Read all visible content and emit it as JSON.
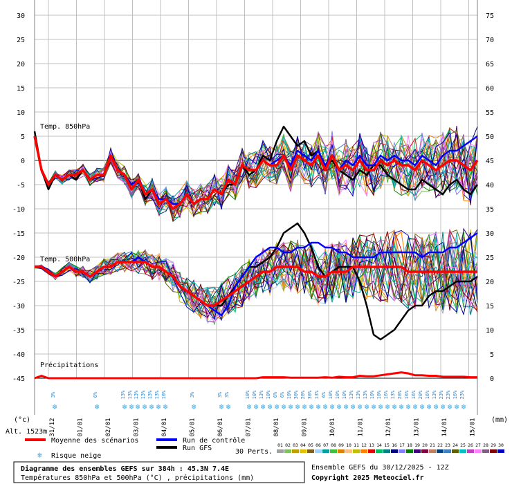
{
  "chart_data": {
    "type": "line",
    "left_ticks": [
      "30",
      "25",
      "20",
      "15",
      "10",
      "5",
      "0",
      "-5",
      "-10",
      "-15",
      "-20",
      "-25",
      "-30",
      "-35",
      "-40",
      "-45"
    ],
    "right_ticks": [
      "75",
      "70",
      "65",
      "60",
      "55",
      "50",
      "45",
      "40",
      "35",
      "30",
      "25",
      "20",
      "15",
      "10",
      "5",
      "0"
    ],
    "left_unit": "(°c)",
    "right_unit": "(mm)",
    "altitude": "Alt. 1523m",
    "panel_labels": {
      "t850": "Temp. 850hPa",
      "t500": "Temp. 500hPa",
      "precip": "Précipitations"
    },
    "x_dates": [
      "31/12",
      "01/01",
      "02/01",
      "03/01",
      "04/01",
      "05/01",
      "06/01",
      "07/01",
      "08/01",
      "09/01",
      "10/01",
      "11/01",
      "12/01",
      "13/01",
      "14/01",
      "15/01"
    ],
    "snow_labels": [
      "3%",
      "6%",
      "13%",
      "13%",
      "13%",
      "13%",
      "13%",
      "13%",
      "10%",
      "3%",
      "3%",
      "3%",
      "10%",
      "10%",
      "13%",
      "10%",
      "6%",
      "6%",
      "10%",
      "30%",
      "20%",
      "30%",
      "13%",
      "6%",
      "10%",
      "10%",
      "10%",
      "13%",
      "13%",
      "13%",
      "10%",
      "10%",
      "16%",
      "13%",
      "20%",
      "16%",
      "16%",
      "20%",
      "16%",
      "13%",
      "23%",
      "23%",
      "16%",
      "23%"
    ],
    "t850_mean": [
      5,
      -2,
      -5,
      -3,
      -4,
      -3,
      -3,
      -2,
      -4,
      -3,
      -3,
      1,
      -2,
      -3,
      -6,
      -4,
      -7,
      -6,
      -9,
      -8,
      -10,
      -9,
      -7,
      -9,
      -8,
      -8,
      -6,
      -7,
      -4,
      -5,
      -1,
      -2,
      -2,
      0,
      -1,
      -1,
      1,
      -2,
      1,
      0,
      -1,
      1,
      -2,
      1,
      -2,
      -1,
      -2,
      0,
      -2,
      -2,
      0,
      -1,
      0,
      -1,
      -1,
      -2,
      0,
      -1,
      -2,
      -1,
      0,
      0,
      -1,
      -2,
      0
    ],
    "t850_ctrl": [
      5,
      -2,
      -5,
      -3,
      -4,
      -3,
      -3,
      -2,
      -4,
      -3,
      -3,
      1,
      -2,
      -3,
      -5,
      -4,
      -7,
      -6,
      -8,
      -8,
      -9,
      -9,
      -7,
      -9,
      -8,
      -8,
      -6,
      -7,
      -4,
      -5,
      -1,
      -2,
      -2,
      0,
      -1,
      0,
      1,
      -1,
      2,
      1,
      0,
      2,
      -1,
      1,
      -2,
      0,
      -1,
      1,
      -1,
      -1,
      1,
      0,
      1,
      0,
      0,
      -1,
      1,
      0,
      -1,
      1,
      2,
      2,
      3,
      4,
      5
    ],
    "t850_gfs": [
      6,
      -2,
      -6,
      -3,
      -4,
      -3,
      -4,
      -2,
      -4,
      -3,
      -3,
      1,
      -2,
      -3,
      -5,
      -4,
      -8,
      -6,
      -9,
      -8,
      -10,
      -9,
      -7,
      -9,
      -8,
      -8,
      -6,
      -7,
      -5,
      -5,
      -1,
      -3,
      -2,
      1,
      0,
      4,
      7,
      5,
      3,
      4,
      1,
      2,
      -1,
      0,
      -2,
      -3,
      -4,
      -2,
      -3,
      -1,
      -1,
      -3,
      -4,
      -5,
      -6,
      -6,
      -4,
      -5,
      -6,
      -7,
      -5,
      -4,
      -6,
      -7,
      -5
    ],
    "t500_mean": [
      -22,
      -22,
      -23,
      -24,
      -23,
      -22,
      -23,
      -23,
      -24,
      -23,
      -22,
      -22,
      -21,
      -21,
      -21,
      -21,
      -21,
      -22,
      -22,
      -23,
      -24,
      -26,
      -27,
      -28,
      -29,
      -30,
      -30,
      -29,
      -28,
      -27,
      -26,
      -25,
      -24,
      -23,
      -23,
      -22,
      -22,
      -22,
      -22,
      -23,
      -23,
      -24,
      -24,
      -23,
      -23,
      -23,
      -22,
      -22,
      -22,
      -22,
      -22,
      -22,
      -22,
      -22,
      -23,
      -23,
      -23,
      -23,
      -23,
      -23,
      -23,
      -23,
      -23,
      -23,
      -23
    ],
    "t500_ctrl": [
      -22,
      -22,
      -23,
      -24,
      -23,
      -22,
      -23,
      -23,
      -24,
      -23,
      -22,
      -22,
      -21,
      -21,
      -21,
      -20,
      -21,
      -22,
      -22,
      -23,
      -24,
      -26,
      -27,
      -28,
      -29,
      -30,
      -31,
      -32,
      -30,
      -26,
      -24,
      -22,
      -20,
      -19,
      -18,
      -18,
      -19,
      -19,
      -18,
      -18,
      -17,
      -17,
      -18,
      -18,
      -19,
      -19,
      -20,
      -20,
      -20,
      -20,
      -19,
      -19,
      -19,
      -19,
      -19,
      -19,
      -20,
      -19,
      -19,
      -19,
      -18,
      -18,
      -17,
      -16,
      -15
    ],
    "t500_gfs": [
      -22,
      -22,
      -23,
      -24,
      -23,
      -22,
      -23,
      -23,
      -24,
      -23,
      -22,
      -22,
      -21,
      -21,
      -21,
      -20,
      -21,
      -22,
      -22,
      -23,
      -24,
      -26,
      -27,
      -28,
      -29,
      -30,
      -30,
      -30,
      -28,
      -26,
      -24,
      -22,
      -22,
      -21,
      -20,
      -18,
      -15,
      -14,
      -13,
      -15,
      -18,
      -22,
      -24,
      -23,
      -22,
      -22,
      -22,
      -25,
      -30,
      -36,
      -37,
      -36,
      -35,
      -33,
      -31,
      -30,
      -30,
      -28,
      -27,
      -27,
      -26,
      -25,
      -25,
      -25,
      -24
    ],
    "precip_mean": [
      0,
      0.5,
      0,
      0,
      0,
      0,
      0,
      0,
      0,
      0,
      0,
      0,
      0,
      0,
      0,
      0,
      0,
      0,
      0,
      0,
      0,
      0,
      0,
      0,
      0,
      0,
      0,
      0,
      0,
      0,
      0,
      0,
      0,
      0.2,
      0.2,
      0.2,
      0.2,
      0.1,
      0.1,
      0.1,
      0.1,
      0.1,
      0.2,
      0.1,
      0.3,
      0.2,
      0.2,
      0.5,
      0.4,
      0.4,
      0.6,
      0.8,
      1,
      1.2,
      1,
      0.6,
      0.6,
      0.5,
      0.5,
      0.3,
      0.3,
      0.3,
      0.3,
      0.2,
      0.2
    ],
    "legend": {
      "mean": "Moyenne des scénarios",
      "ctrl": "Run de contrôle",
      "gfs": "Run GFS",
      "snow": "Risque neige",
      "perts": "30 Perts."
    },
    "pert_labels": [
      "01",
      "02",
      "03",
      "04",
      "05",
      "06",
      "07",
      "08",
      "09",
      "10",
      "11",
      "12",
      "13",
      "14",
      "15",
      "16",
      "17",
      "18",
      "19",
      "20",
      "21",
      "22",
      "23",
      "24",
      "25",
      "26",
      "27",
      "28",
      "29",
      "30"
    ],
    "pert_colors": [
      "#a0a0a0",
      "#80c060",
      "#c0a000",
      "#e0c000",
      "#806020",
      "#a0d0ff",
      "#00a0a0",
      "#40c040",
      "#e08000",
      "#ffc080",
      "#c0c000",
      "#ff8000",
      "#e00000",
      "#00c060",
      "#008080",
      "#000080",
      "#8080ff",
      "#008000",
      "#400080",
      "#800040",
      "#c08060",
      "#004080",
      "#4080c0",
      "#606000",
      "#00c0c0",
      "#c040c0",
      "#ff80ff",
      "#806080",
      "#800000",
      "#0000c0"
    ],
    "footer": {
      "title": "Diagramme des ensembles GEFS sur 384h : 45.3N 7.4E",
      "subtitle": "Températures 850hPa et 500hPa (°C) , précipitations (mm)",
      "ensemble": "Ensemble GEFS du 30/12/2025 - 12Z",
      "copyright": "Copyright 2025 Meteociel.fr"
    },
    "colors": {
      "mean": "#ff0000",
      "ctrl": "#0000ff",
      "gfs": "#000000",
      "grid": "#c0c0c0",
      "snow": "#33aaee"
    }
  }
}
